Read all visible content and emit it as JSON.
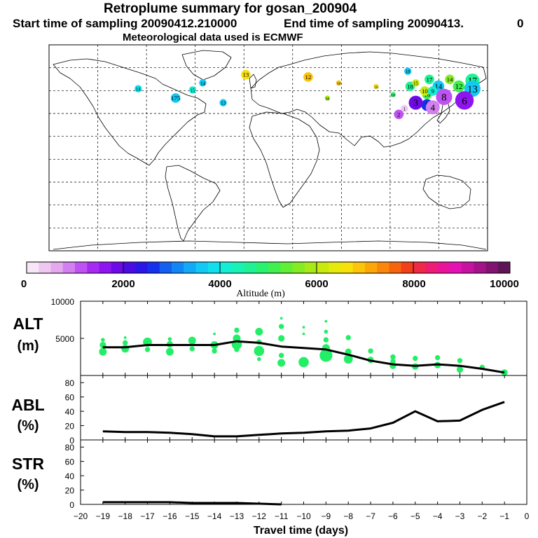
{
  "header": {
    "title": "Retroplume summary for gosan_200904",
    "start_time": "Start time of sampling 20090412.210000",
    "end_time": "End time of sampling 20090413.",
    "end_time_suffix": "0",
    "met_data": "Meteorological data used is ECMWF"
  },
  "map": {
    "plume_points": [
      {
        "label": "18",
        "lon": 135,
        "lat": 52,
        "alt": 4500,
        "size": 3
      },
      {
        "label": "18",
        "lon": 133,
        "lat": 65,
        "alt": 3500,
        "size": 2
      },
      {
        "label": "17",
        "lon": 152,
        "lat": 58,
        "alt": 4700,
        "size": 3
      },
      {
        "label": "16",
        "lon": 150,
        "lat": 45,
        "alt": 5200,
        "size": 3
      },
      {
        "label": "14",
        "lon": 170,
        "lat": 58,
        "alt": 5500,
        "size": 3
      },
      {
        "label": "15",
        "lon": 140,
        "lat": 55,
        "alt": 6200,
        "size": 2
      },
      {
        "label": "14",
        "lon": 160,
        "lat": 52,
        "alt": 3500,
        "size": 4
      },
      {
        "label": "17",
        "lon": 190,
        "lat": 57,
        "alt": 4500,
        "size": 5
      },
      {
        "label": "13",
        "lon": 190,
        "lat": 50,
        "alt": 3500,
        "size": 6
      },
      {
        "label": "12",
        "lon": 178,
        "lat": 52,
        "alt": 5000,
        "size": 4
      },
      {
        "label": "10",
        "lon": 148,
        "lat": 48,
        "alt": 6000,
        "size": 3
      },
      {
        "label": "9",
        "lon": 155,
        "lat": 48,
        "alt": 4200,
        "size": 3
      },
      {
        "label": "6",
        "lon": 183,
        "lat": 40,
        "alt": 1500,
        "size": 7
      },
      {
        "label": "8",
        "lon": 165,
        "lat": 43,
        "alt": 1000,
        "size": 6
      },
      {
        "label": "5",
        "lon": 150,
        "lat": 36,
        "alt": 2500,
        "size": 4
      },
      {
        "label": "3",
        "lon": 140,
        "lat": 38,
        "alt": 1800,
        "size": 5
      },
      {
        "label": "4",
        "lon": 155,
        "lat": 34,
        "alt": 800,
        "size": 5
      },
      {
        "label": "1",
        "lon": 130,
        "lat": 33,
        "alt": 300,
        "size": 2
      },
      {
        "label": "2",
        "lon": 125,
        "lat": 28,
        "alt": 1200,
        "size": 3
      },
      {
        "label": "14",
        "lon": -48,
        "lat": 55,
        "alt": 3500,
        "size": 2
      },
      {
        "label": "15",
        "lon": -57,
        "lat": 49,
        "alt": 4200,
        "size": 2
      },
      {
        "label": "175",
        "lon": -72,
        "lat": 42,
        "alt": 3600,
        "size": 3
      },
      {
        "label": "14",
        "lon": -105,
        "lat": 50,
        "alt": 3800,
        "size": 2
      },
      {
        "label": "13",
        "lon": -10,
        "lat": 62,
        "alt": 6500,
        "size": 3
      },
      {
        "label": "12",
        "lon": 45,
        "lat": 60,
        "alt": 6800,
        "size": 3
      },
      {
        "label": "13",
        "lon": -30,
        "lat": 38,
        "alt": 3500,
        "size": 2
      },
      {
        "label": "10",
        "lon": 72,
        "lat": 55,
        "alt": 6800,
        "size": 1
      },
      {
        "label": "10",
        "lon": 62,
        "lat": 42,
        "alt": 5800,
        "size": 1
      },
      {
        "label": "10",
        "lon": 120,
        "lat": 45,
        "alt": 4800,
        "size": 1
      },
      {
        "label": "10",
        "lon": 105,
        "lat": 52,
        "alt": 6500,
        "size": 1
      }
    ],
    "colorbar": {
      "tick_labels": [
        "0",
        "2000",
        "4000",
        "6000",
        "8000",
        "10000"
      ],
      "title": "Altitude (m)",
      "colors": [
        "#f6e6f6",
        "#eec8f0",
        "#e4a8ee",
        "#d27ff0",
        "#bf52f2",
        "#a82af2",
        "#8e14f0",
        "#6e0ae8",
        "#4a0ce0",
        "#2a16e6",
        "#1432ec",
        "#145ef0",
        "#1286f4",
        "#12aaf6",
        "#12c8f4",
        "#10e0ee",
        "#14eed4",
        "#18f2b4",
        "#1ef294",
        "#28f270",
        "#40f04e",
        "#60ee36",
        "#84ec24",
        "#a6ea18",
        "#c8ea10",
        "#e6ea0c",
        "#f8e00a",
        "#fcc40a",
        "#fca60a",
        "#fa860c",
        "#f6640e",
        "#f2401a",
        "#ee2a46",
        "#ee1c72",
        "#ea149a",
        "#e212b4",
        "#c614a0",
        "#a41488",
        "#801470",
        "#5e1456"
      ]
    }
  },
  "chart_data": [
    {
      "type": "line",
      "name": "ALT",
      "ylabel": "ALT\n(m)",
      "ylim": [
        0,
        10000
      ],
      "yticks": [
        5000,
        10000
      ],
      "xlim": [
        -20,
        0
      ],
      "x": [
        -19,
        -18,
        -17,
        -16,
        -15,
        -14,
        -13,
        -12,
        -11,
        -10,
        -9,
        -8,
        -7,
        -6,
        -5,
        -4,
        -3,
        -2,
        -1
      ],
      "values": [
        3800,
        3800,
        4100,
        4100,
        4100,
        4100,
        4600,
        4400,
        3900,
        3700,
        3500,
        2800,
        2000,
        1500,
        1300,
        1500,
        1300,
        900,
        400
      ],
      "scatter": [
        {
          "x": -19,
          "y": 3200,
          "s": 5
        },
        {
          "x": -19,
          "y": 4100,
          "s": 4
        },
        {
          "x": -19,
          "y": 4800,
          "s": 2
        },
        {
          "x": -18,
          "y": 3600,
          "s": 5
        },
        {
          "x": -18,
          "y": 4400,
          "s": 3
        },
        {
          "x": -18,
          "y": 5100,
          "s": 1
        },
        {
          "x": -17,
          "y": 4500,
          "s": 6
        },
        {
          "x": -17,
          "y": 3500,
          "s": 3
        },
        {
          "x": -16,
          "y": 3200,
          "s": 5
        },
        {
          "x": -16,
          "y": 4200,
          "s": 4
        },
        {
          "x": -16,
          "y": 4900,
          "s": 2
        },
        {
          "x": -15,
          "y": 4700,
          "s": 5
        },
        {
          "x": -15,
          "y": 3600,
          "s": 3
        },
        {
          "x": -14,
          "y": 4100,
          "s": 5
        },
        {
          "x": -14,
          "y": 3300,
          "s": 3
        },
        {
          "x": -14,
          "y": 5600,
          "s": 1
        },
        {
          "x": -13,
          "y": 4200,
          "s": 7
        },
        {
          "x": -13,
          "y": 5000,
          "s": 5
        },
        {
          "x": -13,
          "y": 6100,
          "s": 3
        },
        {
          "x": -13,
          "y": 3500,
          "s": 3
        },
        {
          "x": -12,
          "y": 5900,
          "s": 5
        },
        {
          "x": -12,
          "y": 3300,
          "s": 7
        },
        {
          "x": -12,
          "y": 4500,
          "s": 3
        },
        {
          "x": -12,
          "y": 2200,
          "s": 2
        },
        {
          "x": -11,
          "y": 6600,
          "s": 3
        },
        {
          "x": -11,
          "y": 5000,
          "s": 4
        },
        {
          "x": -11,
          "y": 1700,
          "s": 5
        },
        {
          "x": -11,
          "y": 2700,
          "s": 3
        },
        {
          "x": -11,
          "y": 7700,
          "s": 1
        },
        {
          "x": -10,
          "y": 1800,
          "s": 7
        },
        {
          "x": -10,
          "y": 5600,
          "s": 1
        },
        {
          "x": -10,
          "y": 6500,
          "s": 1
        },
        {
          "x": -9,
          "y": 2700,
          "s": 9
        },
        {
          "x": -9,
          "y": 3700,
          "s": 5
        },
        {
          "x": -9,
          "y": 4800,
          "s": 3
        },
        {
          "x": -9,
          "y": 5900,
          "s": 2
        },
        {
          "x": -9,
          "y": 7300,
          "s": 1
        },
        {
          "x": -8,
          "y": 2200,
          "s": 6
        },
        {
          "x": -8,
          "y": 3200,
          "s": 4
        },
        {
          "x": -8,
          "y": 5100,
          "s": 3
        },
        {
          "x": -7,
          "y": 2100,
          "s": 4
        },
        {
          "x": -7,
          "y": 3300,
          "s": 3
        },
        {
          "x": -6,
          "y": 1300,
          "s": 4
        },
        {
          "x": -6,
          "y": 1900,
          "s": 3
        },
        {
          "x": -6,
          "y": 2500,
          "s": 3
        },
        {
          "x": -5,
          "y": 1200,
          "s": 4
        },
        {
          "x": -5,
          "y": 2300,
          "s": 3
        },
        {
          "x": -4,
          "y": 1400,
          "s": 4
        },
        {
          "x": -4,
          "y": 2400,
          "s": 3
        },
        {
          "x": -3,
          "y": 800,
          "s": 4
        },
        {
          "x": -3,
          "y": 2000,
          "s": 3
        },
        {
          "x": -2,
          "y": 1100,
          "s": 3
        },
        {
          "x": -1,
          "y": 400,
          "s": 4
        }
      ]
    },
    {
      "type": "line",
      "name": "ABL",
      "ylabel": "ABL\n(%)",
      "ylim": [
        0,
        90
      ],
      "yticks": [
        0,
        20,
        40,
        60,
        80
      ],
      "xlim": [
        -20,
        0
      ],
      "x": [
        -19,
        -18,
        -17,
        -16,
        -15,
        -14,
        -13,
        -12,
        -11,
        -10,
        -9,
        -8,
        -7,
        -6,
        -5,
        -4,
        -3,
        -2,
        -1
      ],
      "values": [
        12,
        11,
        11,
        10,
        8,
        5,
        5,
        7,
        9,
        10,
        12,
        13,
        16,
        24,
        40,
        26,
        27,
        42,
        53
      ]
    },
    {
      "type": "line",
      "name": "STR",
      "ylabel": "STR\n(%)",
      "ylim": [
        0,
        90
      ],
      "yticks": [
        0,
        20,
        40,
        60,
        80
      ],
      "xlim": [
        -20,
        0
      ],
      "x": [
        -19,
        -18,
        -17,
        -16,
        -15,
        -14,
        -13,
        -12,
        -11
      ],
      "values": [
        3,
        3,
        3,
        3,
        2,
        2,
        2,
        1,
        0
      ],
      "xticks": [
        -20,
        -19,
        -18,
        -17,
        -16,
        -15,
        -14,
        -13,
        -12,
        -11,
        -10,
        -9,
        -8,
        -7,
        -6,
        -5,
        -4,
        -3,
        -2,
        -1,
        0
      ],
      "xtick_labels": [
        "−20",
        "−19",
        "−18",
        "−17",
        "−16",
        "−15",
        "−14",
        "−13",
        "−12",
        "−11",
        "−10",
        "−9",
        "−8",
        "−7",
        "−6",
        "−5",
        "−4",
        "−3",
        "−2",
        "−1",
        "0"
      ],
      "xlabel": "Travel time (days)"
    }
  ]
}
